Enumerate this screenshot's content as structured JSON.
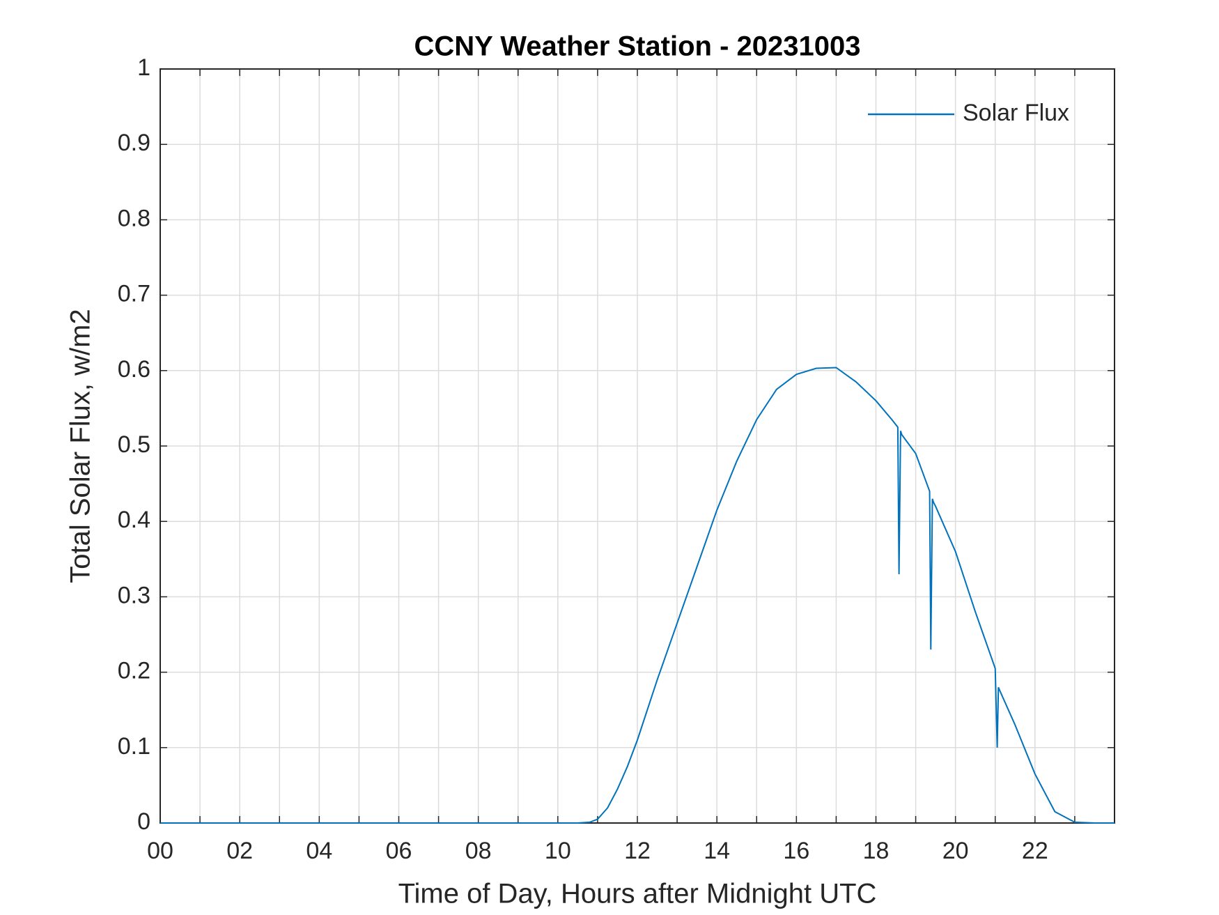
{
  "chart_data": {
    "type": "line",
    "title": "CCNY Weather Station - 20231003",
    "xlabel": "Time of Day, Hours after Midnight UTC",
    "ylabel": "Total Solar Flux, w/m2",
    "x": [
      0,
      1,
      2,
      3,
      4,
      5,
      6,
      7,
      8,
      9,
      10,
      10.5,
      10.8,
      11,
      11.25,
      11.5,
      11.75,
      12,
      12.5,
      13,
      13.5,
      14,
      14.5,
      15,
      15.5,
      16,
      16.5,
      17,
      17.5,
      18,
      18.4,
      18.55,
      18.58,
      18.62,
      18.65,
      19,
      19.35,
      19.38,
      19.42,
      19.45,
      19.5,
      20,
      20.5,
      21,
      21.05,
      21.08,
      21.12,
      21.5,
      22,
      22.5,
      23,
      23.5,
      24
    ],
    "series": [
      {
        "name": "Solar Flux",
        "color": "#0072bd",
        "values": [
          0,
          0,
          0,
          0,
          0,
          0,
          0,
          0,
          0,
          0,
          0,
          0,
          0.001,
          0.005,
          0.02,
          0.045,
          0.075,
          0.11,
          0.19,
          0.265,
          0.34,
          0.415,
          0.48,
          0.535,
          0.575,
          0.595,
          0.603,
          0.604,
          0.585,
          0.56,
          0.535,
          0.525,
          0.33,
          0.52,
          0.515,
          0.49,
          0.44,
          0.23,
          0.43,
          0.425,
          0.42,
          0.36,
          0.28,
          0.205,
          0.1,
          0.18,
          0.175,
          0.13,
          0.065,
          0.015,
          0.001,
          0,
          0
        ]
      }
    ],
    "xlim": [
      0,
      24
    ],
    "xticks": [
      {
        "value": 0,
        "label": "00"
      },
      {
        "value": 2,
        "label": "02"
      },
      {
        "value": 4,
        "label": "04"
      },
      {
        "value": 6,
        "label": "06"
      },
      {
        "value": 8,
        "label": "08"
      },
      {
        "value": 10,
        "label": "10"
      },
      {
        "value": 12,
        "label": "12"
      },
      {
        "value": 14,
        "label": "14"
      },
      {
        "value": 16,
        "label": "16"
      },
      {
        "value": 18,
        "label": "18"
      },
      {
        "value": 20,
        "label": "20"
      },
      {
        "value": 22,
        "label": "22"
      }
    ],
    "xminorticks": [
      1,
      3,
      5,
      7,
      9,
      11,
      13,
      15,
      17,
      19,
      21,
      23
    ],
    "ylim": [
      0,
      1
    ],
    "yticks": [
      0,
      0.1,
      0.2,
      0.3,
      0.4,
      0.5,
      0.6,
      0.7,
      0.8,
      0.9,
      1
    ],
    "grid": true,
    "legend": "upper right"
  }
}
